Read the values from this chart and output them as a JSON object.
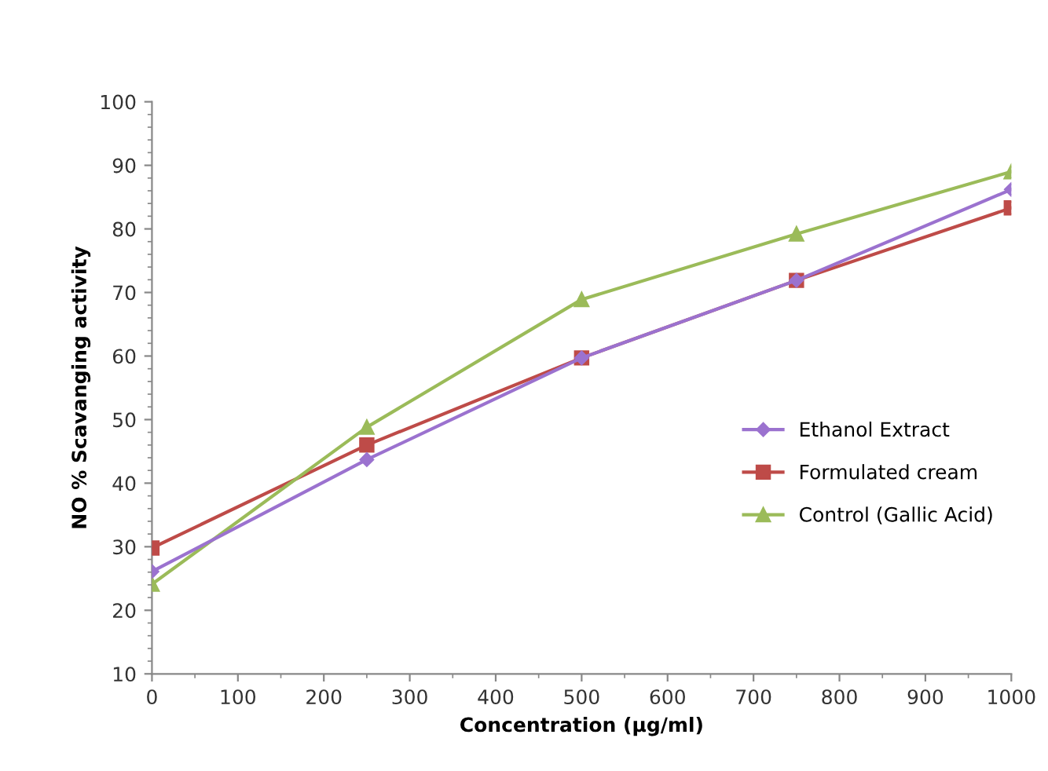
{
  "chart_data": {
    "type": "line",
    "xlabel": "Concentration (µg/ml)",
    "ylabel": "NO % Scavanging activity",
    "x": [
      0,
      250,
      500,
      750,
      1000
    ],
    "series": [
      {
        "name": "Ethanol Extract",
        "color": "#9b72cf",
        "marker": "diamond",
        "values": [
          26.1,
          43.7,
          59.7,
          71.9,
          86.2
        ]
      },
      {
        "name": "Formulated cream",
        "color": "#be4b48",
        "marker": "square",
        "values": [
          29.8,
          46.0,
          59.7,
          71.9,
          83.3
        ]
      },
      {
        "name": "Control (Gallic Acid)",
        "color": "#9bbb59",
        "marker": "triangle",
        "values": [
          24.1,
          48.8,
          68.9,
          79.2,
          89.0
        ]
      }
    ],
    "xlim": [
      0,
      1000
    ],
    "ylim": [
      10,
      100
    ],
    "xticks": [
      0,
      100,
      200,
      300,
      400,
      500,
      600,
      700,
      800,
      900,
      1000
    ],
    "yticks": [
      10,
      20,
      30,
      40,
      50,
      60,
      70,
      80,
      90,
      100
    ],
    "grid": false,
    "legend": "right",
    "line_style": "solid"
  }
}
